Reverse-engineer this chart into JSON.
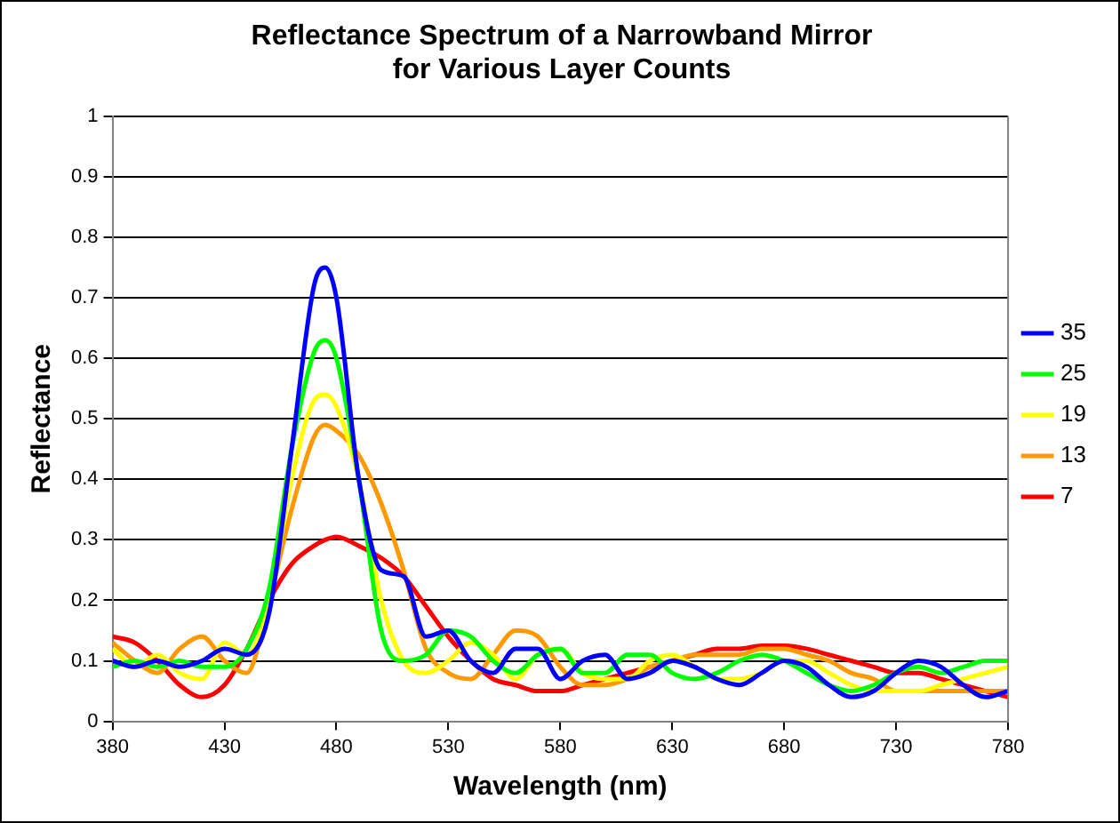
{
  "chart_data": {
    "type": "line",
    "title": "Reflectance Spectrum of a Narrowband Mirror\nfor Various Layer Counts",
    "xlabel": "Wavelength (nm)",
    "ylabel": "Reflectance",
    "x": [
      380,
      390,
      400,
      410,
      420,
      430,
      440,
      450,
      460,
      470,
      475,
      480,
      490,
      500,
      510,
      520,
      530,
      540,
      550,
      560,
      570,
      580,
      590,
      600,
      610,
      620,
      630,
      640,
      650,
      660,
      670,
      680,
      690,
      700,
      710,
      720,
      730,
      740,
      750,
      760,
      770,
      780
    ],
    "series": [
      {
        "name": "35",
        "color": "#0000ff",
        "values": [
          0.1,
          0.09,
          0.1,
          0.09,
          0.1,
          0.12,
          0.11,
          0.18,
          0.45,
          0.72,
          0.75,
          0.7,
          0.4,
          0.25,
          0.24,
          0.14,
          0.15,
          0.1,
          0.08,
          0.12,
          0.12,
          0.07,
          0.1,
          0.11,
          0.07,
          0.08,
          0.1,
          0.09,
          0.07,
          0.06,
          0.08,
          0.1,
          0.09,
          0.06,
          0.04,
          0.05,
          0.08,
          0.1,
          0.09,
          0.06,
          0.04,
          0.05
        ]
      },
      {
        "name": "25",
        "color": "#00ff00",
        "values": [
          0.09,
          0.1,
          0.09,
          0.1,
          0.09,
          0.09,
          0.12,
          0.22,
          0.45,
          0.61,
          0.63,
          0.6,
          0.4,
          0.15,
          0.1,
          0.11,
          0.15,
          0.14,
          0.1,
          0.08,
          0.11,
          0.12,
          0.08,
          0.08,
          0.11,
          0.11,
          0.08,
          0.07,
          0.08,
          0.1,
          0.11,
          0.1,
          0.08,
          0.06,
          0.05,
          0.06,
          0.08,
          0.09,
          0.08,
          0.09,
          0.1,
          0.1
        ]
      },
      {
        "name": "19",
        "color": "#ffff00",
        "values": [
          0.12,
          0.09,
          0.11,
          0.08,
          0.07,
          0.13,
          0.11,
          0.2,
          0.4,
          0.53,
          0.54,
          0.52,
          0.4,
          0.2,
          0.1,
          0.08,
          0.1,
          0.13,
          0.11,
          0.07,
          0.11,
          0.12,
          0.08,
          0.07,
          0.07,
          0.1,
          0.11,
          0.09,
          0.07,
          0.07,
          0.08,
          0.1,
          0.1,
          0.08,
          0.06,
          0.05,
          0.05,
          0.05,
          0.06,
          0.07,
          0.08,
          0.09
        ]
      },
      {
        "name": "13",
        "color": "#ff9900",
        "values": [
          0.13,
          0.1,
          0.08,
          0.12,
          0.14,
          0.1,
          0.08,
          0.2,
          0.35,
          0.47,
          0.49,
          0.48,
          0.44,
          0.36,
          0.25,
          0.12,
          0.08,
          0.07,
          0.11,
          0.15,
          0.14,
          0.09,
          0.06,
          0.06,
          0.07,
          0.09,
          0.1,
          0.11,
          0.11,
          0.11,
          0.12,
          0.12,
          0.11,
          0.1,
          0.08,
          0.07,
          0.05,
          0.05,
          0.05,
          0.05,
          0.05,
          0.05
        ]
      },
      {
        "name": "7",
        "color": "#ff0000",
        "values": [
          0.14,
          0.13,
          0.1,
          0.06,
          0.04,
          0.06,
          0.12,
          0.2,
          0.26,
          0.29,
          0.3,
          0.305,
          0.29,
          0.27,
          0.24,
          0.19,
          0.14,
          0.1,
          0.07,
          0.06,
          0.05,
          0.05,
          0.06,
          0.07,
          0.08,
          0.09,
          0.1,
          0.11,
          0.12,
          0.12,
          0.125,
          0.125,
          0.12,
          0.11,
          0.1,
          0.09,
          0.08,
          0.08,
          0.07,
          0.06,
          0.05,
          0.04
        ]
      }
    ],
    "xlim": [
      380,
      780
    ],
    "xticks": [
      380,
      430,
      480,
      530,
      580,
      630,
      680,
      730,
      780
    ],
    "ylim": [
      0,
      1
    ],
    "yticks": [
      0,
      0.1,
      0.2,
      0.3,
      0.4,
      0.5,
      0.6,
      0.7,
      0.8,
      0.9,
      1
    ],
    "grid": "y",
    "legend": "right",
    "marker": "none",
    "line_style": "solid"
  }
}
